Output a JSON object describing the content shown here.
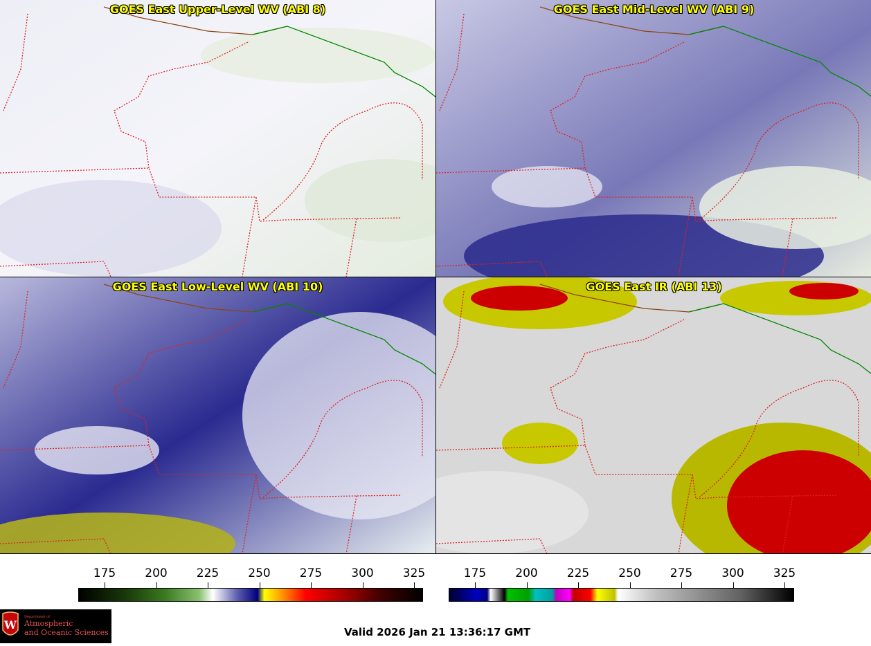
{
  "panels": [
    {
      "title": "GOES East Upper-Level WV (ABI 8)"
    },
    {
      "title": "GOES East Mid-Level WV (ABI 9)"
    },
    {
      "title": "GOES East Low-Level WV (ABI 10)"
    },
    {
      "title": "GOES East IR (ABI 13)"
    }
  ],
  "colorbars": {
    "wv": {
      "ticks": [
        "175",
        "200",
        "225",
        "250",
        "275",
        "300",
        "325"
      ]
    },
    "ir": {
      "ticks": [
        "175",
        "200",
        "225",
        "250",
        "275",
        "300",
        "325"
      ]
    }
  },
  "logo": {
    "line1": "Department of",
    "line2": "Atmospheric",
    "line3": "and Oceanic Sciences",
    "seal": "W"
  },
  "valid": "Valid 2026 Jan 21 13:36:17 GMT"
}
